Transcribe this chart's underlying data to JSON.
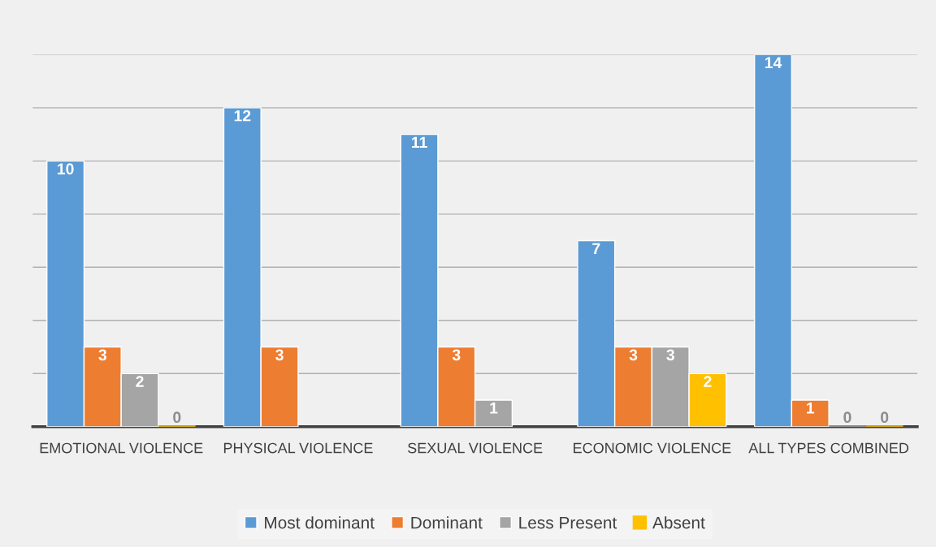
{
  "chart_data": {
    "type": "bar",
    "categories": [
      "EMOTIONAL VIOLENCE",
      "PHYSICAL VIOLENCE",
      "SEXUAL VIOLENCE",
      "ECONOMIC VIOLENCE",
      "ALL TYPES COMBINED"
    ],
    "series": [
      {
        "name": "Most dominant",
        "color": "#5b9bd5",
        "values": [
          10,
          12,
          11,
          7,
          14
        ]
      },
      {
        "name": "Dominant",
        "color": "#ed7d31",
        "values": [
          3,
          3,
          3,
          3,
          1
        ]
      },
      {
        "name": "Less Present",
        "color": "#a5a5a5",
        "values": [
          2,
          null,
          1,
          3,
          0
        ]
      },
      {
        "name": "Absent",
        "color": "#ffc000",
        "values": [
          0,
          null,
          null,
          2,
          0
        ]
      }
    ],
    "ylim": [
      0,
      14
    ],
    "yticks": [
      {
        "value": 0,
        "label": null
      },
      {
        "value": 2,
        "label": null
      },
      {
        "value": 4,
        "label": null
      },
      {
        "value": 6,
        "label": null
      },
      {
        "value": 8,
        "label": null
      },
      {
        "value": 10,
        "label": null
      },
      {
        "value": 12,
        "label": null
      },
      {
        "value": 14,
        "label": null
      }
    ],
    "tick_labels": "x",
    "grid": "y",
    "legend": "bottom",
    "data_labels": true
  }
}
